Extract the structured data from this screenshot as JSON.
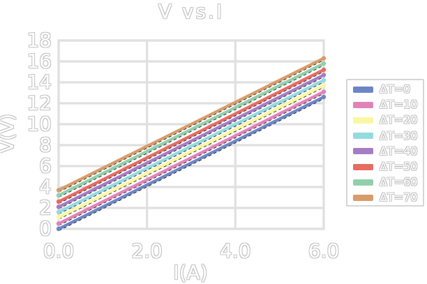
{
  "title": "V vs.I",
  "axes": {
    "x_label": "I(A)",
    "y_label": "V(V)",
    "x_ticks": [
      {
        "label": "0.0",
        "value": 0
      },
      {
        "label": "2.0",
        "value": 2
      },
      {
        "label": "4.0",
        "value": 4
      },
      {
        "label": "6.0",
        "value": 6
      }
    ],
    "y_ticks": [
      {
        "label": "0",
        "value": 0
      },
      {
        "label": "2",
        "value": 2
      },
      {
        "label": "4",
        "value": 4
      },
      {
        "label": "6",
        "value": 6
      },
      {
        "label": "8",
        "value": 8
      },
      {
        "label": "10",
        "value": 10
      },
      {
        "label": "12",
        "value": 12
      },
      {
        "label": "14",
        "value": 14
      },
      {
        "label": "16",
        "value": 16
      },
      {
        "label": "18",
        "value": 18
      }
    ]
  },
  "colors": {
    "background": "#ffffff",
    "grid": "#e0e0e0",
    "text_outline": "#c4c4c4",
    "legend_border": "#d6d6d6",
    "fit_dash": "#1a1a1a"
  },
  "chart_data": {
    "type": "line",
    "title": "V vs.I",
    "xlabel": "I(A)",
    "ylabel": "V(V)",
    "x": [
      0,
      6
    ],
    "xlim": [
      0,
      6
    ],
    "ylim": [
      0,
      18
    ],
    "grid": true,
    "legend_position": "right",
    "series": [
      {
        "name": "ΔT=0",
        "color": "#6c86c5",
        "values": [
          0.0,
          12.6
        ]
      },
      {
        "name": "ΔT=10",
        "color": "#e283b8",
        "values": [
          0.5,
          13.1
        ]
      },
      {
        "name": "ΔT=20",
        "color": "#faf7a2",
        "values": [
          1.1,
          13.7
        ]
      },
      {
        "name": "ΔT=30",
        "color": "#92dbe1",
        "values": [
          1.6,
          14.2
        ]
      },
      {
        "name": "ΔT=40",
        "color": "#a77cc4",
        "values": [
          2.1,
          14.7
        ]
      },
      {
        "name": "ΔT=50",
        "color": "#e66c62",
        "values": [
          2.6,
          15.2
        ]
      },
      {
        "name": "ΔT=60",
        "color": "#92cfab",
        "values": [
          3.2,
          15.8
        ]
      },
      {
        "name": "ΔT=70",
        "color": "#d89c6a",
        "values": [
          3.7,
          16.3
        ]
      }
    ]
  }
}
